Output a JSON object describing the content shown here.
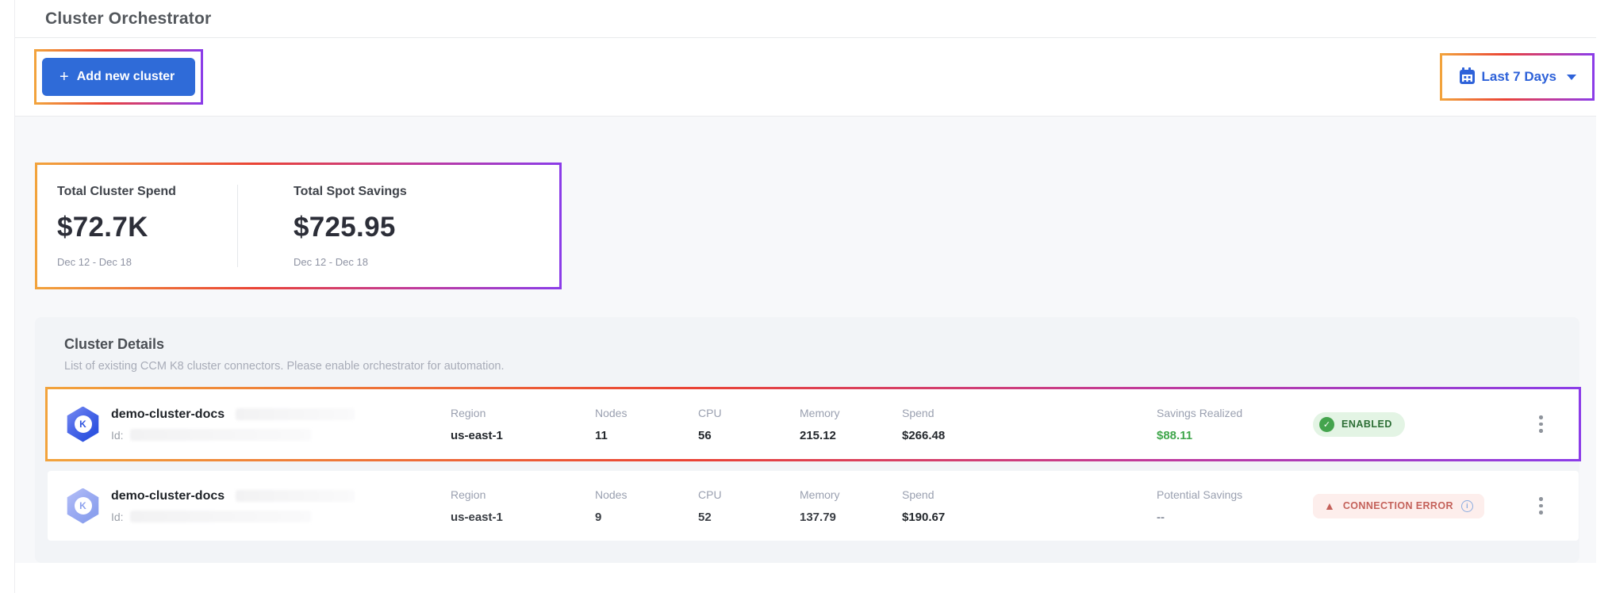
{
  "header": {
    "title": "Cluster Orchestrator"
  },
  "toolbar": {
    "add_button_icon": "+",
    "add_button_label": "Add new cluster",
    "date_range_label": "Last 7 Days"
  },
  "stats": {
    "cards": [
      {
        "label": "Total Cluster Spend",
        "value": "$72.7K",
        "period": "Dec 12 - Dec 18"
      },
      {
        "label": "Total Spot Savings",
        "value": "$725.95",
        "period": "Dec 12 - Dec 18"
      }
    ]
  },
  "details": {
    "title": "Cluster Details",
    "subtitle": "List of existing CCM K8 cluster connectors. Please enable orchestrator for automation.",
    "labels": {
      "region": "Region",
      "nodes": "Nodes",
      "cpu": "CPU",
      "memory": "Memory",
      "spend": "Spend"
    },
    "clusters": [
      {
        "name": "demo-cluster-docs",
        "id_label": "Id:",
        "region": "us-east-1",
        "nodes": "11",
        "cpu": "56",
        "memory": "215.12",
        "spend": "$266.48",
        "savings_label": "Savings Realized",
        "savings": "$88.11",
        "status": {
          "label": "ENABLED",
          "type": "success",
          "check_glyph": "✓"
        }
      },
      {
        "name": "demo-cluster-docs",
        "id_label": "Id:",
        "region": "us-east-1",
        "nodes": "9",
        "cpu": "52",
        "memory": "137.79",
        "spend": "$190.67",
        "savings_label": "Potential Savings",
        "savings": "--",
        "status": {
          "label": "CONNECTION ERROR",
          "type": "error",
          "warn_glyph": "▲",
          "info_glyph": "i"
        }
      }
    ],
    "cluster_icon_letter": "K"
  },
  "colors": {
    "primary_blue": "#2f6bd8",
    "link_blue": "#2e62d9",
    "success_green": "#44a44d",
    "success_text": "#2c6e35",
    "savings_green": "#3fa64b",
    "error_red": "#c4615a",
    "error_bg": "#fdeeec",
    "success_bg": "#e3f4e4",
    "body_bg": "#f7f8fa",
    "panel_bg": "#f2f4f7",
    "annotation_gradient": [
      "#f2a33c",
      "#ea4335",
      "#c13a9b",
      "#8b3ce8"
    ]
  }
}
